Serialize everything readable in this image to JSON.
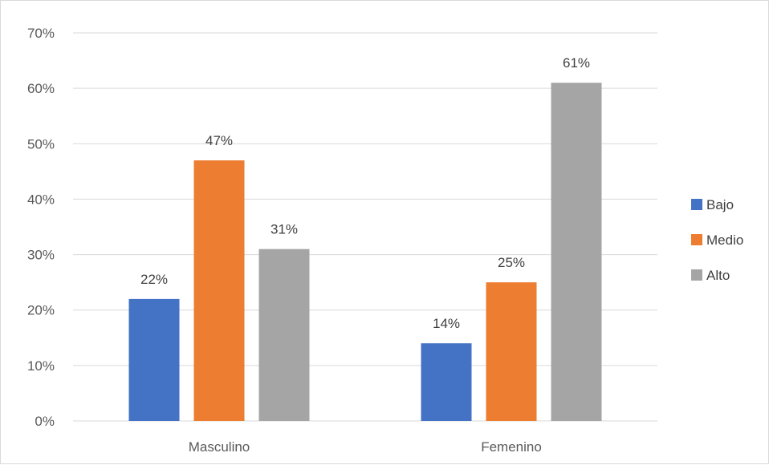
{
  "chart_data": {
    "type": "bar",
    "categories": [
      "Masculino",
      "Femenino"
    ],
    "series": [
      {
        "name": "Bajo",
        "color": "#4472C4",
        "values": [
          22,
          14
        ]
      },
      {
        "name": "Medio",
        "color": "#ED7D31",
        "values": [
          47,
          25
        ]
      },
      {
        "name": "Alto",
        "color": "#A5A5A5",
        "values": [
          31,
          61
        ]
      }
    ],
    "data_labels": [
      [
        "22%",
        "14%"
      ],
      [
        "47%",
        "25%"
      ],
      [
        "31%",
        "61%"
      ]
    ],
    "ylim": [
      0,
      70
    ],
    "yticks": [
      0,
      10,
      20,
      30,
      40,
      50,
      60,
      70
    ],
    "ytick_labels": [
      "0%",
      "10%",
      "20%",
      "30%",
      "40%",
      "50%",
      "60%",
      "70%"
    ],
    "grid": true,
    "legend_position": "right",
    "gridline_color": "#d9d9d9"
  }
}
